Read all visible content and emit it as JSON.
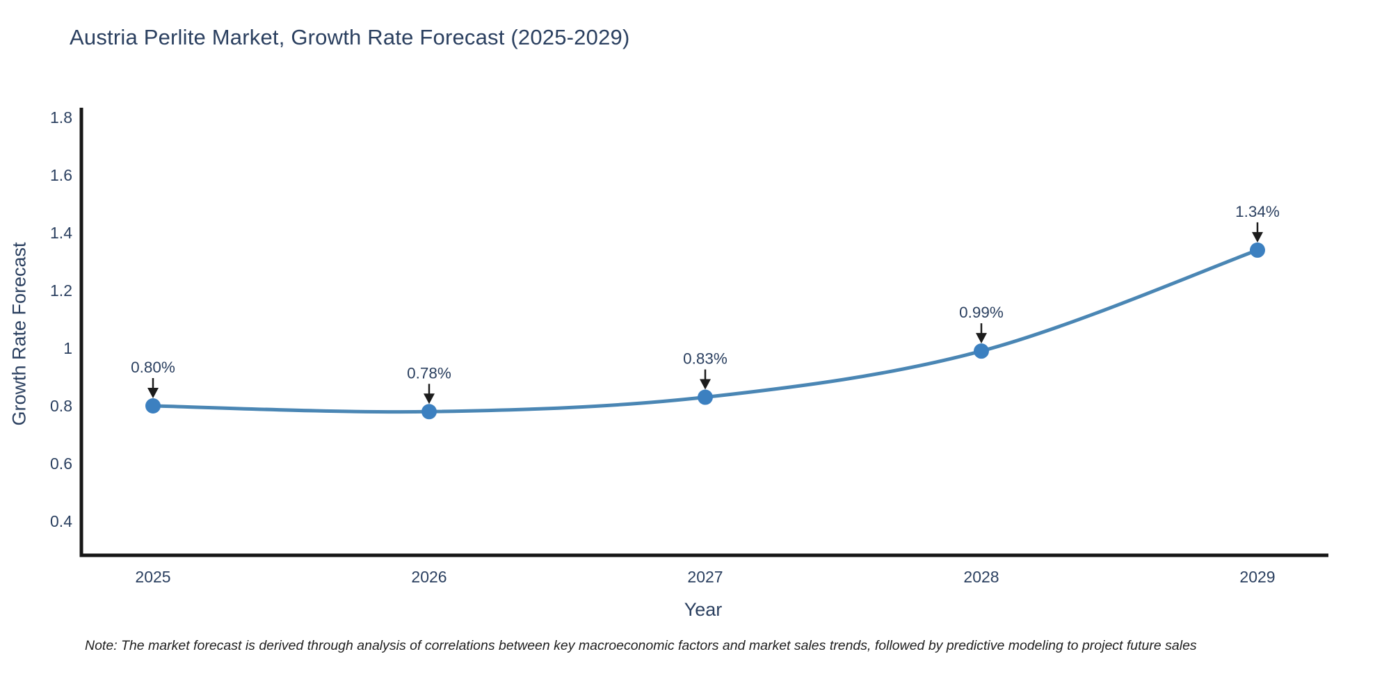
{
  "chart_data": {
    "type": "line",
    "title": "Austria Perlite Market, Growth Rate Forecast (2025-2029)",
    "xlabel": "Year",
    "ylabel": "Growth Rate Forecast",
    "categories": [
      "2025",
      "2026",
      "2027",
      "2028",
      "2029"
    ],
    "values": [
      0.8,
      0.78,
      0.83,
      0.99,
      1.34
    ],
    "point_labels": [
      "0.80%",
      "0.78%",
      "0.83%",
      "0.99%",
      "1.34%"
    ],
    "ytick_labels": [
      "0.4",
      "0.6",
      "0.8",
      "1",
      "1.2",
      "1.4",
      "1.6",
      "1.8"
    ],
    "ytick_values": [
      0.4,
      0.6,
      0.8,
      1.0,
      1.2,
      1.4,
      1.6,
      1.8
    ],
    "ylim": [
      0.27,
      1.83
    ],
    "line_shape": "spline",
    "grid": false,
    "legend": "none",
    "colors": {
      "line": "#4a86b4",
      "marker": "#3c80c0",
      "axis": "#161616",
      "arrow": "#1c1c1c",
      "text": "#2a3f5f",
      "note": "#1f1f1f"
    }
  },
  "note": "Note: The market forecast is derived through analysis of correlations between key macroeconomic factors and market sales trends, followed by predictive modeling to project future sales"
}
